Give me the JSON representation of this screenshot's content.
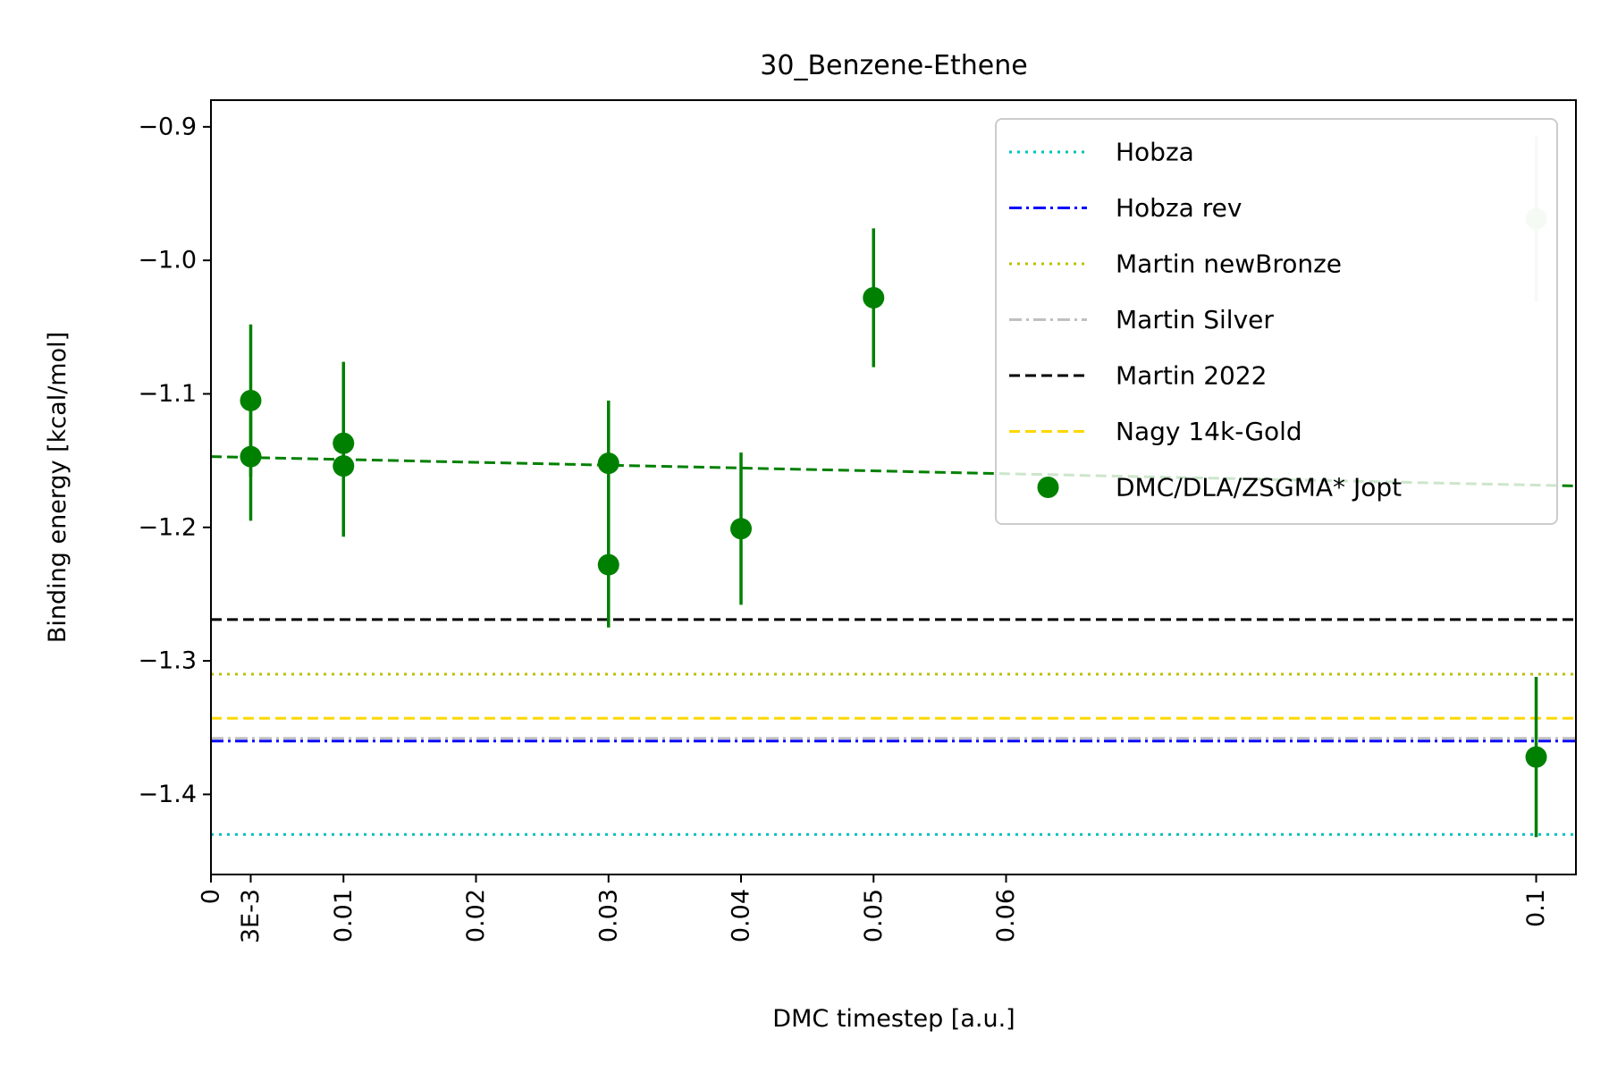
{
  "chart_data": {
    "type": "scatter",
    "title": "30_Benzene-Ethene",
    "xlabel": "DMC timestep [a.u.]",
    "ylabel": "Binding energy [kcal/mol]",
    "xlim": [
      0,
      0.103
    ],
    "ylim": [
      -1.46,
      -0.88
    ],
    "x_ticks": [
      {
        "value": 0,
        "label": "0"
      },
      {
        "value": 0.003,
        "label": "3E-3"
      },
      {
        "value": 0.01,
        "label": "0.01"
      },
      {
        "value": 0.02,
        "label": "0.02"
      },
      {
        "value": 0.03,
        "label": "0.03"
      },
      {
        "value": 0.04,
        "label": "0.04"
      },
      {
        "value": 0.05,
        "label": "0.05"
      },
      {
        "value": 0.06,
        "label": "0.06"
      },
      {
        "value": 0.1,
        "label": "0.1"
      }
    ],
    "y_ticks": [
      {
        "value": -0.9,
        "label": "−0.9"
      },
      {
        "value": -1.0,
        "label": "−1.0"
      },
      {
        "value": -1.1,
        "label": "−1.1"
      },
      {
        "value": -1.2,
        "label": "−1.2"
      },
      {
        "value": -1.3,
        "label": "−1.3"
      },
      {
        "value": -1.4,
        "label": "−1.4"
      }
    ],
    "legend_position": "top-right",
    "reference_lines": [
      {
        "name": "Hobza",
        "y": -1.43,
        "color": "#00bfbf",
        "style": "dotted"
      },
      {
        "name": "Hobza rev",
        "y": -1.36,
        "color": "#0000ff",
        "style": "dashdot"
      },
      {
        "name": "Martin newBronze",
        "y": -1.31,
        "color": "#bfbf00",
        "style": "dotted"
      },
      {
        "name": "Martin Silver",
        "y": -1.358,
        "color": "#c0c0c0",
        "style": "dashdot"
      },
      {
        "name": "Martin 2022",
        "y": -1.269,
        "color": "#000000",
        "style": "dashed"
      },
      {
        "name": "Nagy 14k-Gold",
        "y": -1.343,
        "color": "#ffd700",
        "style": "dashed"
      }
    ],
    "fit_line": {
      "x": [
        0,
        0.103
      ],
      "y": [
        -1.147,
        -1.169
      ],
      "color": "#008000",
      "style": "dashed"
    },
    "series": [
      {
        "name": "DMC/DLA/ZSGMA* Jopt",
        "color": "#008000",
        "points": [
          {
            "x": 0.003,
            "y": -1.105,
            "err": 0.057
          },
          {
            "x": 0.003,
            "y": -1.147,
            "err": 0.048
          },
          {
            "x": 0.01,
            "y": -1.137,
            "err": 0.061
          },
          {
            "x": 0.01,
            "y": -1.154,
            "err": 0.053
          },
          {
            "x": 0.03,
            "y": -1.152,
            "err": 0.047
          },
          {
            "x": 0.03,
            "y": -1.228,
            "err": 0.047
          },
          {
            "x": 0.04,
            "y": -1.201,
            "err": 0.057
          },
          {
            "x": 0.05,
            "y": -1.028,
            "err": 0.052
          },
          {
            "x": 0.1,
            "y": -1.372,
            "err": 0.06
          },
          {
            "x": 0.1,
            "y": -0.969,
            "err": 0.062,
            "faded": true
          }
        ]
      }
    ]
  }
}
